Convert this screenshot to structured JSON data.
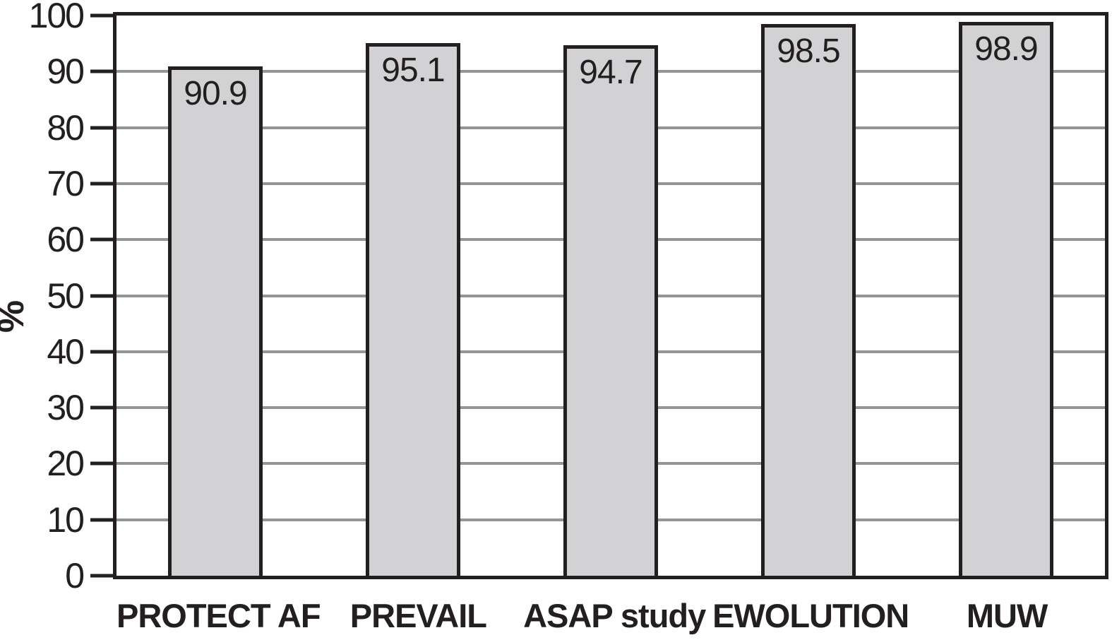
{
  "chart_data": {
    "type": "bar",
    "title": "",
    "xlabel": "",
    "ylabel": "%",
    "categories": [
      "PROTECT AF",
      "PREVAIL",
      "ASAP study",
      "EWOLUTION",
      "MUW"
    ],
    "values": [
      90.9,
      95.1,
      94.7,
      98.5,
      98.9
    ],
    "value_labels": [
      "90.9",
      "95.1",
      "94.7",
      "98.5",
      "98.9"
    ],
    "ylim": [
      0,
      100
    ],
    "yticks": [
      0,
      10,
      20,
      30,
      40,
      50,
      60,
      70,
      80,
      90,
      100
    ],
    "grid": "horizontal",
    "legend": "none",
    "colors": {
      "bar_fill": "#d2d2d4",
      "bar_border": "#231f20",
      "gridline": "#939598",
      "axis": "#231f20",
      "text": "#231f20",
      "background": "#ffffff"
    }
  }
}
